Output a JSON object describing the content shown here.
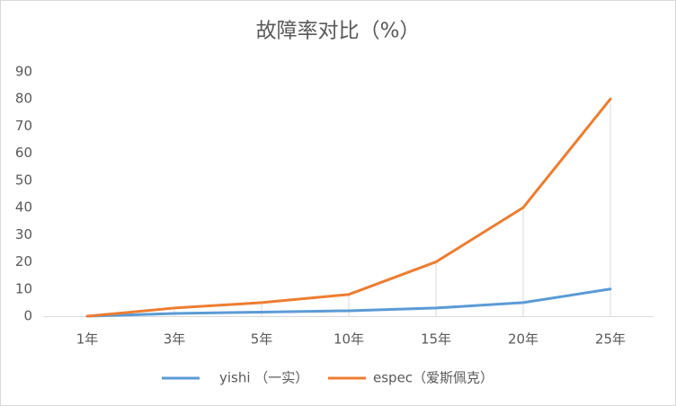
{
  "chart_data": {
    "type": "line",
    "title": "故障率对比（%）",
    "categories": [
      "1年",
      "3年",
      "5年",
      "10年",
      "15年",
      "20年",
      "25年"
    ],
    "series": [
      {
        "name": "yishi （一实）",
        "color": "#5b9bd5",
        "values": [
          0,
          1,
          1.5,
          2,
          3,
          5,
          10
        ]
      },
      {
        "name": "espec（爱斯佩克）",
        "color": "#ed7d31",
        "values": [
          0,
          3,
          5,
          8,
          20,
          40,
          80
        ]
      }
    ],
    "ylim": [
      0,
      90
    ],
    "yticks": [
      0,
      10,
      20,
      30,
      40,
      50,
      60,
      70,
      80,
      90
    ],
    "grid": false,
    "drop_lines": true,
    "legend": "bottom"
  }
}
